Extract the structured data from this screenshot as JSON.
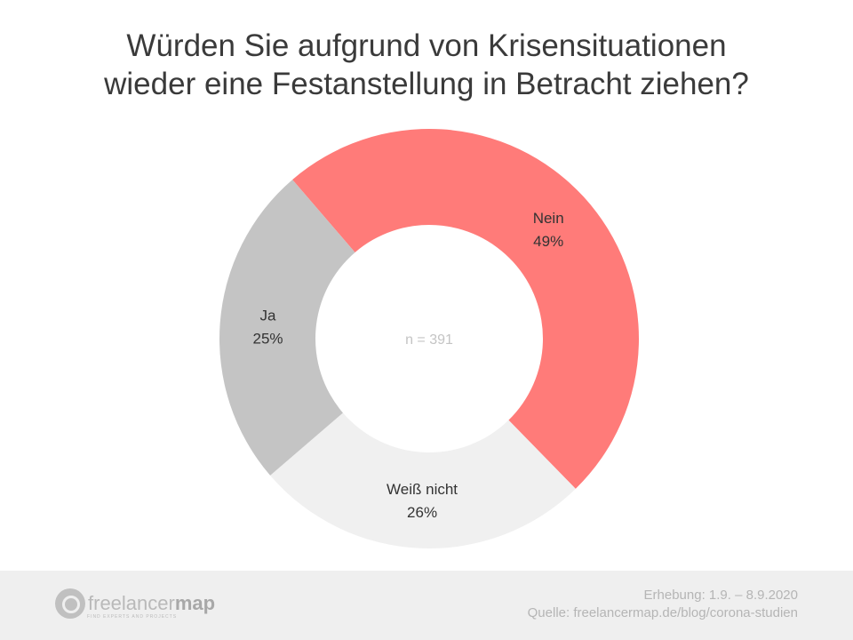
{
  "chart_data": {
    "type": "pie",
    "donut": true,
    "title": "Würden Sie aufgrund von Krisensituationen wieder eine Festanstellung in Betracht ziehen?",
    "title_lines": [
      "Würden Sie aufgrund von Krisensituationen",
      "wieder eine Festanstellung in Betracht ziehen?"
    ],
    "center_label": "n = 391",
    "start_angle_deg": -40.7,
    "slices": [
      {
        "label": "Nein",
        "value": 49,
        "value_label": "49%",
        "color": "#ff7b79"
      },
      {
        "label": "Weiß nicht",
        "value": 26,
        "value_label": "26%",
        "color": "#f0f0f0"
      },
      {
        "label": "Ja",
        "value": 25,
        "value_label": "25%",
        "color": "#c4c4c4"
      }
    ]
  },
  "footer": {
    "survey": "Erhebung: 1.9. – 8.9.2020",
    "source": "Quelle: freelancermap.de/blog/corona-studien",
    "logo_text": "freelancermap",
    "logo_tagline": "FIND EXPERTS AND PROJECTS"
  }
}
